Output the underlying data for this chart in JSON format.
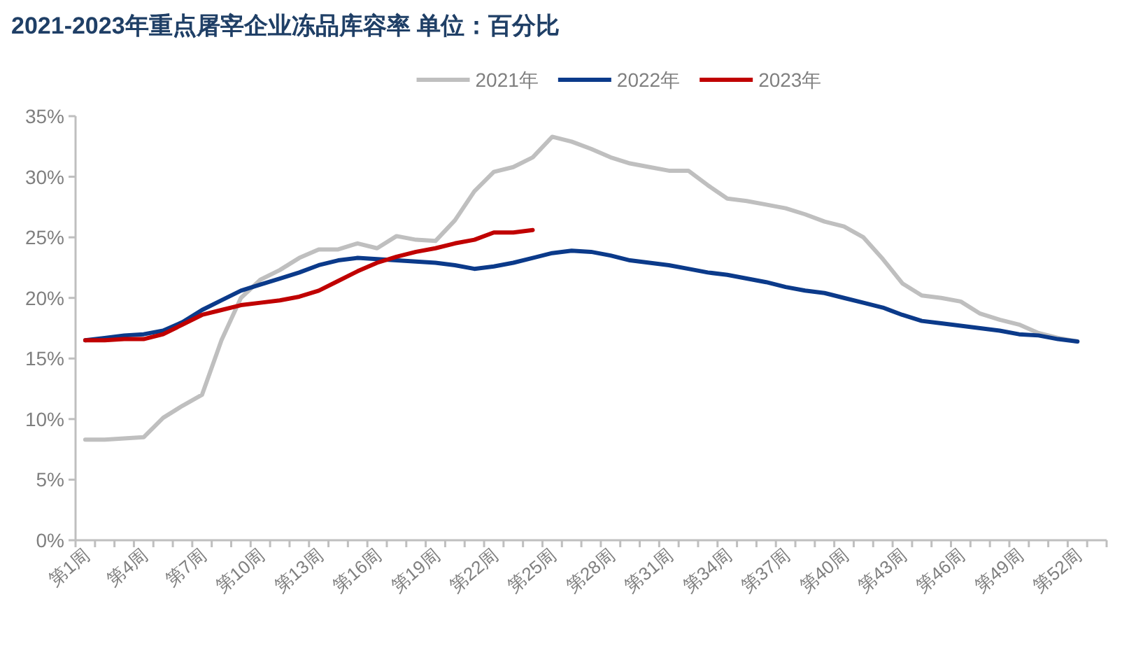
{
  "chart_data": {
    "type": "line",
    "title": "2021-2023年重点屠宰企业冻品库容率  单位：百分比",
    "categories": [
      "第1周",
      null,
      null,
      "第4周",
      null,
      null,
      "第7周",
      null,
      null,
      "第10周",
      null,
      null,
      "第13周",
      null,
      null,
      "第16周",
      null,
      null,
      "第19周",
      null,
      null,
      "第22周",
      null,
      null,
      "第25周",
      null,
      null,
      "第28周",
      null,
      null,
      "第31周",
      null,
      null,
      "第34周",
      null,
      null,
      "第37周",
      null,
      null,
      "第40周",
      null,
      null,
      "第43周",
      null,
      null,
      "第46周",
      null,
      null,
      "第49周",
      null,
      null,
      "第52周",
      null
    ],
    "series": [
      {
        "name": "2021年",
        "color": "#bfbfbf",
        "values": [
          8.3,
          8.3,
          8.4,
          8.5,
          10.1,
          11.1,
          12.0,
          16.5,
          20.0,
          21.5,
          22.3,
          23.3,
          24.0,
          24.0,
          24.5,
          24.1,
          25.1,
          24.8,
          24.7,
          26.4,
          28.8,
          30.4,
          30.8,
          31.6,
          33.3,
          32.9,
          32.3,
          31.6,
          31.1,
          30.8,
          30.5,
          30.5,
          29.3,
          28.2,
          28.0,
          27.7,
          27.4,
          26.9,
          26.3,
          25.9,
          25.0,
          23.2,
          21.2,
          20.2,
          20.0,
          19.7,
          18.7,
          18.2,
          17.8,
          17.1,
          16.7,
          16.4,
          null
        ]
      },
      {
        "name": "2022年",
        "color": "#0b3a8a",
        "values": [
          16.5,
          16.7,
          16.9,
          17.0,
          17.3,
          18.0,
          19.0,
          19.8,
          20.6,
          21.1,
          21.6,
          22.1,
          22.7,
          23.1,
          23.3,
          23.2,
          23.1,
          23.0,
          22.9,
          22.7,
          22.4,
          22.6,
          22.9,
          23.3,
          23.7,
          23.9,
          23.8,
          23.5,
          23.1,
          22.9,
          22.7,
          22.4,
          22.1,
          21.9,
          21.6,
          21.3,
          20.9,
          20.6,
          20.4,
          20.0,
          19.6,
          19.2,
          18.6,
          18.1,
          17.9,
          17.7,
          17.5,
          17.3,
          17.0,
          16.9,
          16.6,
          16.4,
          null
        ]
      },
      {
        "name": "2023年",
        "color": "#c00000",
        "values": [
          16.5,
          16.5,
          16.6,
          16.6,
          17.0,
          17.8,
          18.6,
          19.0,
          19.4,
          19.6,
          19.8,
          20.1,
          20.6,
          21.4,
          22.2,
          22.9,
          23.4,
          23.8,
          24.1,
          24.5,
          24.8,
          25.4,
          25.4,
          25.6,
          null,
          null,
          null,
          null,
          null,
          null,
          null,
          null,
          null,
          null,
          null,
          null,
          null,
          null,
          null,
          null,
          null,
          null,
          null,
          null,
          null,
          null,
          null,
          null,
          null,
          null,
          null,
          null,
          null
        ]
      }
    ],
    "ylim": [
      0,
      35
    ],
    "yticks": [
      {
        "value": 0,
        "label": "0%"
      },
      {
        "value": 5,
        "label": "5%"
      },
      {
        "value": 10,
        "label": "10%"
      },
      {
        "value": 15,
        "label": "15%"
      },
      {
        "value": 20,
        "label": "20%"
      },
      {
        "value": 25,
        "label": "25%"
      },
      {
        "value": 30,
        "label": "30%"
      },
      {
        "value": 35,
        "label": "35%"
      }
    ],
    "legend": "top"
  }
}
